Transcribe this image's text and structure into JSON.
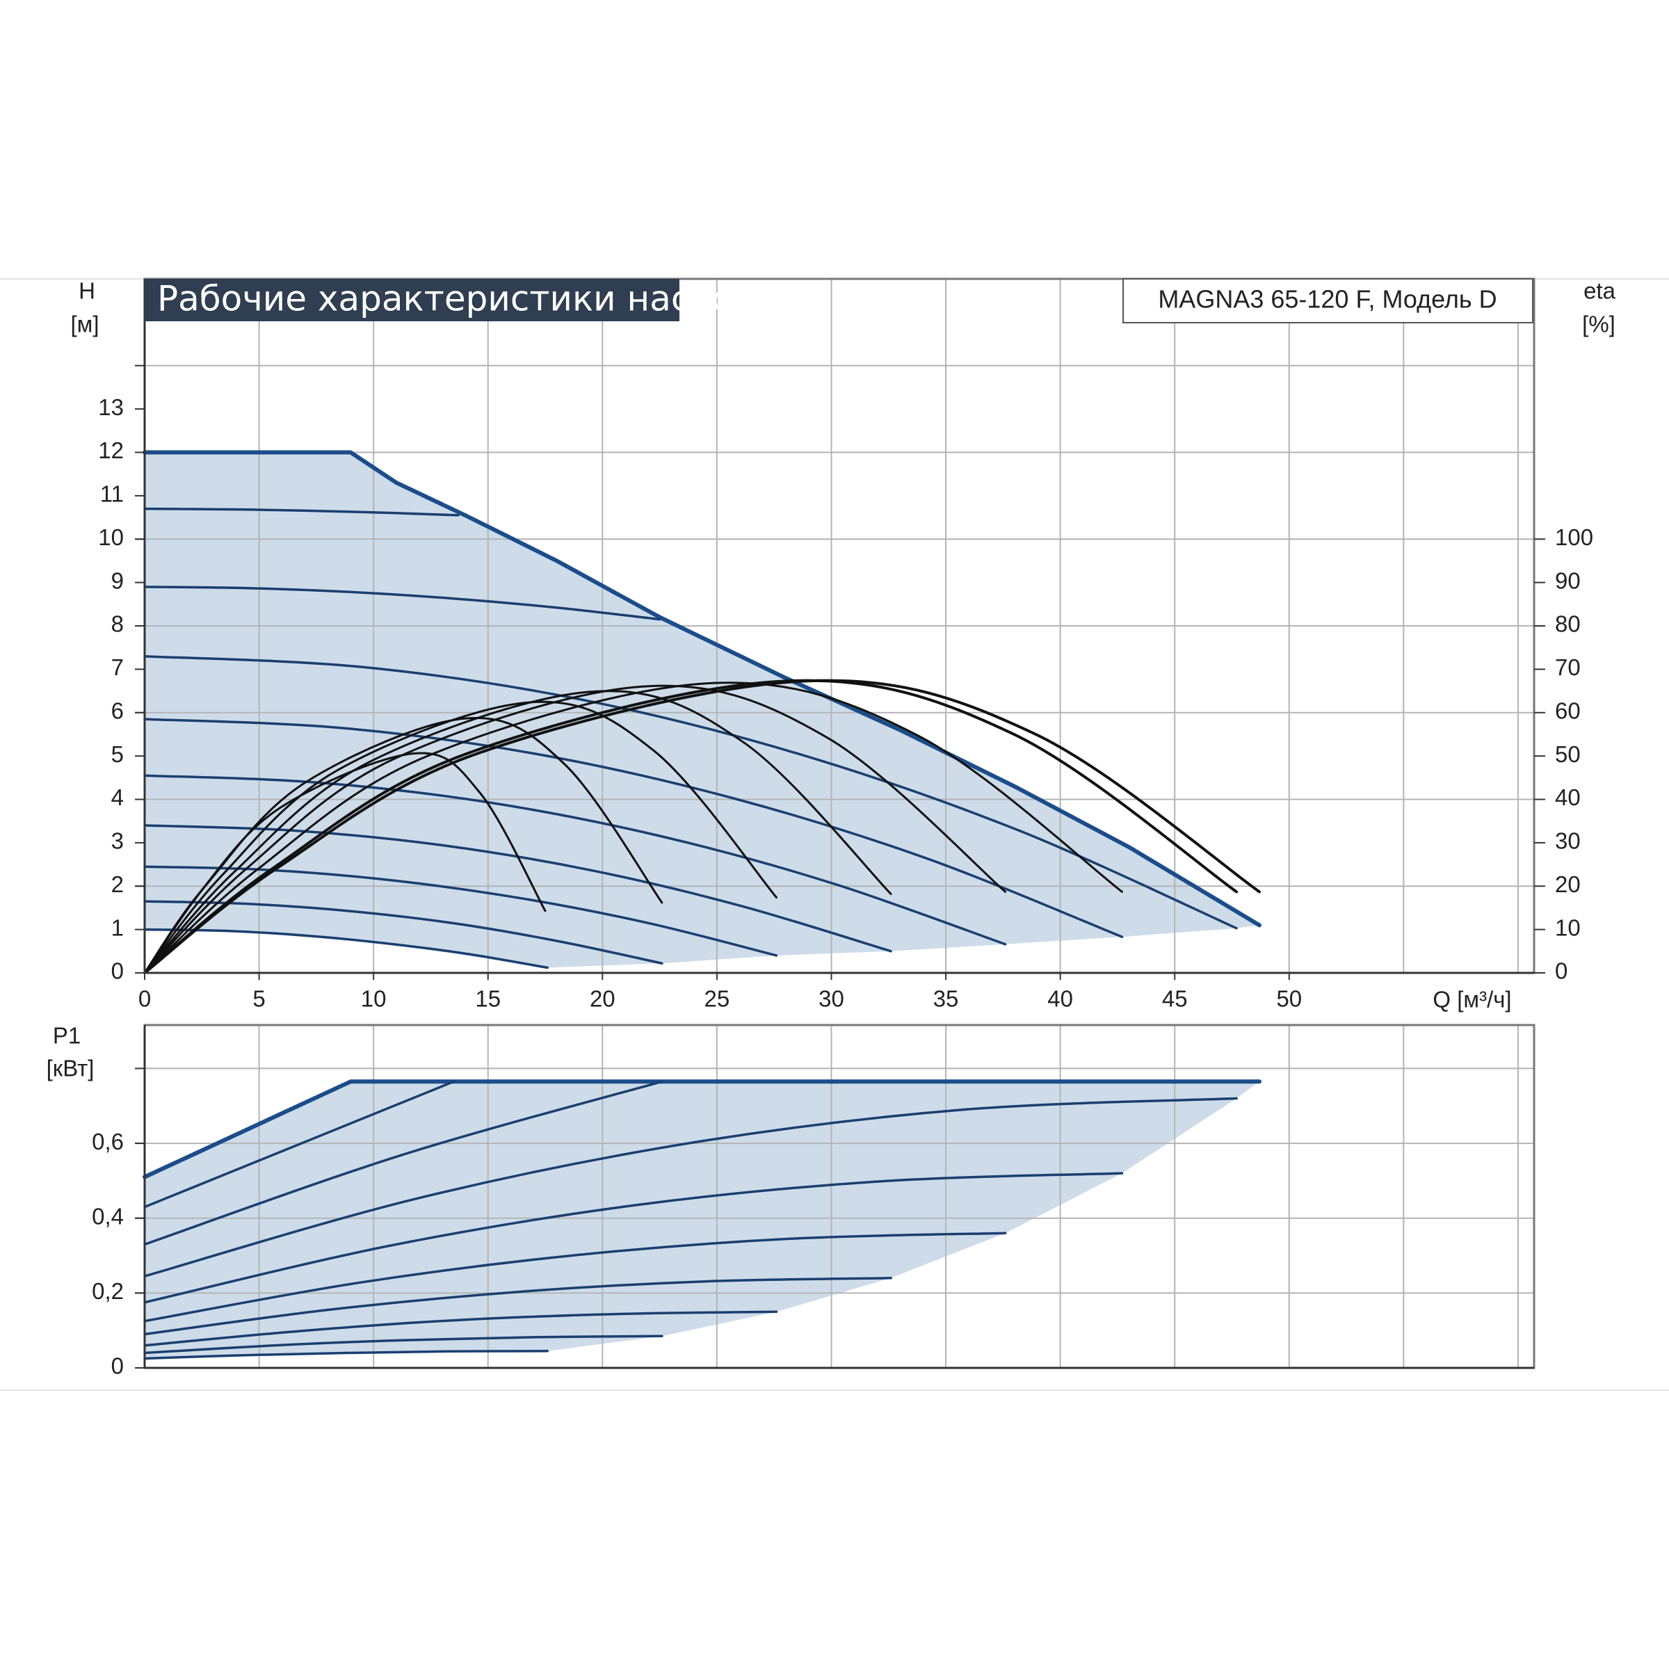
{
  "chart_data": [
    {
      "type": "line",
      "title": "Рабочие характеристики насоса",
      "model": "MAGNA3 65-120 F, Модель D",
      "ylabel": "H",
      "yunit": "[м]",
      "y2label": "eta",
      "y2unit": "[%]",
      "xlabel": "Q [м³/ч]",
      "xlim": [
        0,
        60.7
      ],
      "xticks": [
        0,
        5,
        10,
        15,
        20,
        25,
        30,
        35,
        40,
        45,
        50
      ],
      "xgrid": [
        5,
        10,
        15,
        20,
        25,
        30,
        35,
        40,
        45,
        50,
        55,
        60
      ],
      "ylim": [
        0,
        16
      ],
      "yticks": [
        0,
        1,
        2,
        3,
        4,
        5,
        6,
        7,
        8,
        9,
        10,
        11,
        12,
        13
      ],
      "ygrid": [
        2,
        4,
        6,
        8,
        10,
        12,
        14
      ],
      "y2lim": [
        0,
        160
      ],
      "y2ticks": [
        0,
        10,
        20,
        30,
        40,
        50,
        60,
        70,
        80,
        90,
        100
      ],
      "area": {
        "color": "#cedcea",
        "x": [
          0,
          9,
          11,
          14,
          18,
          22.5,
          28,
          33,
          38,
          43,
          48.7,
          47.7,
          42.7,
          37.6,
          32.6,
          27.6,
          22.6,
          17.6,
          10.56,
          3.52,
          0
        ],
        "values": [
          12,
          12,
          11.3,
          10.55,
          9.5,
          8.2,
          6.8,
          5.6,
          4.3,
          2.9,
          1.1,
          1.03,
          0.83,
          0.66,
          0.5,
          0.4,
          0.22,
          0.12,
          0.68,
          0.97,
          1.0
        ]
      },
      "series": [
        {
          "color": "#1c4d8a",
          "line_width": 6,
          "smooth": false,
          "x": [
            0,
            9,
            11,
            14,
            18,
            22.5,
            28,
            33,
            38,
            43,
            48.7
          ],
          "values": [
            12,
            12,
            11.3,
            10.55,
            9.5,
            8.2,
            6.8,
            5.6,
            4.3,
            2.9,
            1.1
          ]
        },
        {
          "color": "#1a3f70",
          "line_width": 3.5,
          "smooth": true,
          "x": [
            0,
            4.57,
            9.13,
            13.7
          ],
          "values": [
            10.7,
            10.68,
            10.63,
            10.55
          ]
        },
        {
          "color": "#1a3f70",
          "line_width": 3.5,
          "smooth": true,
          "x": [
            0,
            4.5,
            9,
            13.5,
            18,
            22.5
          ],
          "values": [
            8.9,
            8.87,
            8.78,
            8.63,
            8.42,
            8.15
          ]
        },
        {
          "color": "#1a3f70",
          "line_width": 3.5,
          "smooth": true,
          "x": [
            0,
            9.54,
            19.08,
            28.62,
            38.16,
            47.7
          ],
          "values": [
            7.3,
            7.05,
            6.3,
            5.04,
            3.29,
            1.03
          ]
        },
        {
          "color": "#1a3f70",
          "line_width": 3.5,
          "smooth": true,
          "x": [
            0,
            8.54,
            17.08,
            25.62,
            34.16,
            42.7
          ],
          "values": [
            5.85,
            5.65,
            5.05,
            4.04,
            2.64,
            0.83
          ]
        },
        {
          "color": "#1a3f70",
          "line_width": 3.5,
          "smooth": true,
          "x": [
            0,
            7.52,
            15.04,
            22.56,
            30.08,
            37.6
          ],
          "values": [
            4.55,
            4.39,
            3.93,
            3.15,
            2.06,
            0.66
          ]
        },
        {
          "color": "#1a3f70",
          "line_width": 3.5,
          "smooth": true,
          "x": [
            0,
            6.52,
            13.04,
            19.56,
            26.08,
            32.6
          ],
          "values": [
            3.4,
            3.28,
            2.94,
            2.36,
            1.54,
            0.5
          ]
        },
        {
          "color": "#1a3f70",
          "line_width": 3.5,
          "smooth": true,
          "x": [
            0,
            5.52,
            11.04,
            16.56,
            22.08,
            27.6
          ],
          "values": [
            2.45,
            2.37,
            2.12,
            1.71,
            1.14,
            0.4
          ]
        },
        {
          "color": "#1a3f70",
          "line_width": 3.5,
          "smooth": true,
          "x": [
            0,
            4.52,
            9.04,
            13.56,
            18.08,
            22.6
          ],
          "values": [
            1.65,
            1.59,
            1.42,
            1.14,
            0.73,
            0.22
          ]
        },
        {
          "color": "#1a3f70",
          "line_width": 3.5,
          "smooth": true,
          "x": [
            0,
            3.52,
            7.04,
            10.56,
            14.08,
            17.6
          ],
          "values": [
            1.0,
            0.97,
            0.86,
            0.68,
            0.44,
            0.12
          ]
        },
        {
          "color": "#111111",
          "line_width": 3,
          "smooth": true,
          "axis": "y2",
          "x": [
            0,
            2.36,
            5.9,
            11.8,
            14.65,
            17.5
          ],
          "values": [
            0,
            18.2,
            38.0,
            50.6,
            41.5,
            14.3
          ]
        },
        {
          "color": "#111111",
          "line_width": 3,
          "smooth": true,
          "axis": "y2",
          "x": [
            0,
            2.82,
            7.05,
            14.1,
            18.35,
            22.6
          ],
          "values": [
            0,
            21.1,
            44.0,
            58.7,
            48.1,
            16.2
          ]
        },
        {
          "color": "#111111",
          "line_width": 3,
          "smooth": true,
          "axis": "y2",
          "x": [
            0,
            3.38,
            8.45,
            16.9,
            22.25,
            27.6
          ],
          "values": [
            0,
            22.5,
            46.8,
            62.4,
            51.2,
            17.4
          ]
        },
        {
          "color": "#111111",
          "line_width": 3,
          "smooth": true,
          "axis": "y2",
          "x": [
            0,
            3.94,
            9.85,
            19.7,
            26.15,
            32.6
          ],
          "values": [
            0,
            23.4,
            48.7,
            64.9,
            53.2,
            18.2
          ]
        },
        {
          "color": "#111111",
          "line_width": 3,
          "smooth": true,
          "axis": "y2",
          "x": [
            0,
            4.4,
            11,
            22,
            29.8,
            37.6
          ],
          "values": [
            0,
            23.8,
            49.6,
            66.1,
            54.3,
            18.7
          ]
        },
        {
          "color": "#111111",
          "line_width": 3,
          "smooth": true,
          "axis": "y2",
          "x": [
            0,
            4.96,
            12.4,
            24.8,
            33.75,
            42.7
          ],
          "values": [
            0,
            24.0,
            50.1,
            66.8,
            54.8,
            18.7
          ]
        },
        {
          "color": "#111111",
          "line_width": 4,
          "smooth": true,
          "axis": "y2",
          "x": [
            0,
            5.62,
            14.05,
            28.1,
            37.9,
            47.7
          ],
          "values": [
            0,
            24.2,
            50.5,
            67.3,
            55.2,
            18.7
          ]
        },
        {
          "color": "#111111",
          "line_width": 4,
          "smooth": true,
          "axis": "y2",
          "x": [
            0,
            5.8,
            14.5,
            29,
            38.85,
            48.7
          ],
          "values": [
            0,
            24.2,
            50.5,
            67.3,
            55.2,
            18.7
          ]
        }
      ]
    },
    {
      "type": "line",
      "ylabel": "P1",
      "yunit": "[кВт]",
      "xlim": [
        0,
        60.7
      ],
      "xgrid": [
        5,
        10,
        15,
        20,
        25,
        30,
        35,
        40,
        45,
        50,
        55,
        60
      ],
      "ylim": [
        0,
        0.916
      ],
      "yticks": [
        0,
        {
          "value": 0.2,
          "label": "0,2"
        },
        {
          "value": 0.4,
          "label": "0,4"
        },
        {
          "value": 0.6,
          "label": "0,6"
        }
      ],
      "ygrid": [
        0.2,
        0.4,
        0.6,
        0.8
      ],
      "area": {
        "color": "#cedcea",
        "x": [
          0,
          9,
          48.7,
          47.7,
          42.7,
          37.6,
          32.6,
          27.6,
          22.6,
          17.6,
          8.8,
          0
        ],
        "values": [
          0.51,
          0.765,
          0.765,
          0.72,
          0.52,
          0.36,
          0.24,
          0.15,
          0.085,
          0.045,
          0.04,
          0.025
        ]
      },
      "series": [
        {
          "color": "#1c4d8a",
          "line_width": 6,
          "smooth": false,
          "x": [
            0,
            9,
            48.7
          ],
          "values": [
            0.51,
            0.765,
            0.765
          ]
        },
        {
          "color": "#1a3f70",
          "line_width": 3.5,
          "smooth": false,
          "x": [
            0,
            13.5
          ],
          "values": [
            0.43,
            0.765
          ]
        },
        {
          "color": "#1a3f70",
          "line_width": 3.5,
          "smooth": true,
          "x": [
            0,
            11.3,
            22.6
          ],
          "values": [
            0.33,
            0.57,
            0.765
          ]
        },
        {
          "color": "#1a3f70",
          "line_width": 3.5,
          "smooth": true,
          "x": [
            0,
            11.93,
            23.85,
            35.78,
            47.7
          ],
          "values": [
            0.245,
            0.453,
            0.601,
            0.69,
            0.72
          ]
        },
        {
          "color": "#1a3f70",
          "line_width": 3.5,
          "smooth": true,
          "x": [
            0,
            10.68,
            21.35,
            32.03,
            42.7
          ],
          "values": [
            0.175,
            0.326,
            0.434,
            0.498,
            0.52
          ]
        },
        {
          "color": "#1a3f70",
          "line_width": 3.5,
          "smooth": true,
          "x": [
            0,
            9.4,
            18.8,
            28.2,
            37.6
          ],
          "values": [
            0.125,
            0.228,
            0.301,
            0.345,
            0.36
          ]
        },
        {
          "color": "#1a3f70",
          "line_width": 3.5,
          "smooth": true,
          "x": [
            0,
            8.15,
            16.3,
            24.45,
            32.6
          ],
          "values": [
            0.09,
            0.156,
            0.203,
            0.231,
            0.24
          ]
        },
        {
          "color": "#1a3f70",
          "line_width": 3.5,
          "smooth": true,
          "x": [
            0,
            6.9,
            13.8,
            20.7,
            27.6
          ],
          "values": [
            0.06,
            0.099,
            0.128,
            0.144,
            0.15
          ]
        },
        {
          "color": "#1a3f70",
          "line_width": 3.5,
          "smooth": true,
          "x": [
            0,
            5.65,
            11.3,
            16.95,
            22.6
          ],
          "values": [
            0.04,
            0.06,
            0.074,
            0.082,
            0.085
          ]
        },
        {
          "color": "#1a3f70",
          "line_width": 3.5,
          "smooth": true,
          "x": [
            0,
            4.4,
            8.8,
            13.2,
            17.6
          ],
          "values": [
            0.025,
            0.034,
            0.04,
            0.044,
            0.045
          ]
        }
      ]
    }
  ]
}
